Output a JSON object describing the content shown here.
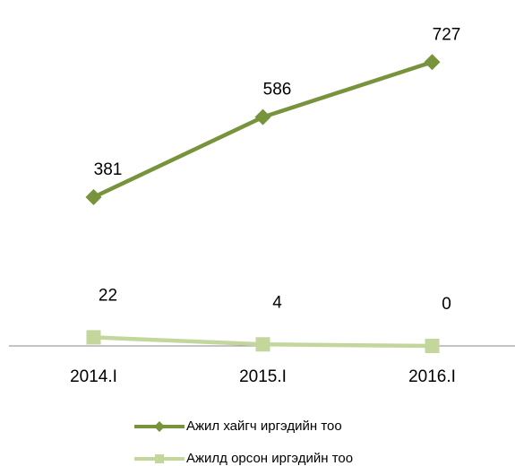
{
  "chart_data": {
    "type": "line",
    "categories": [
      "2014.I",
      "2015.I",
      "2016.I"
    ],
    "series": [
      {
        "name": "Ажил хайгч иргэдийн тоо",
        "color": "#77933c",
        "marker": "diamond",
        "values": [
          381,
          586,
          727
        ]
      },
      {
        "name": "Ажилд орсон иргэдийн тоо",
        "color": "#c3d69b",
        "marker": "square",
        "values": [
          22,
          4,
          0
        ]
      }
    ],
    "ylim": [
      0,
      840
    ],
    "grid": false,
    "legend": "bottom"
  }
}
